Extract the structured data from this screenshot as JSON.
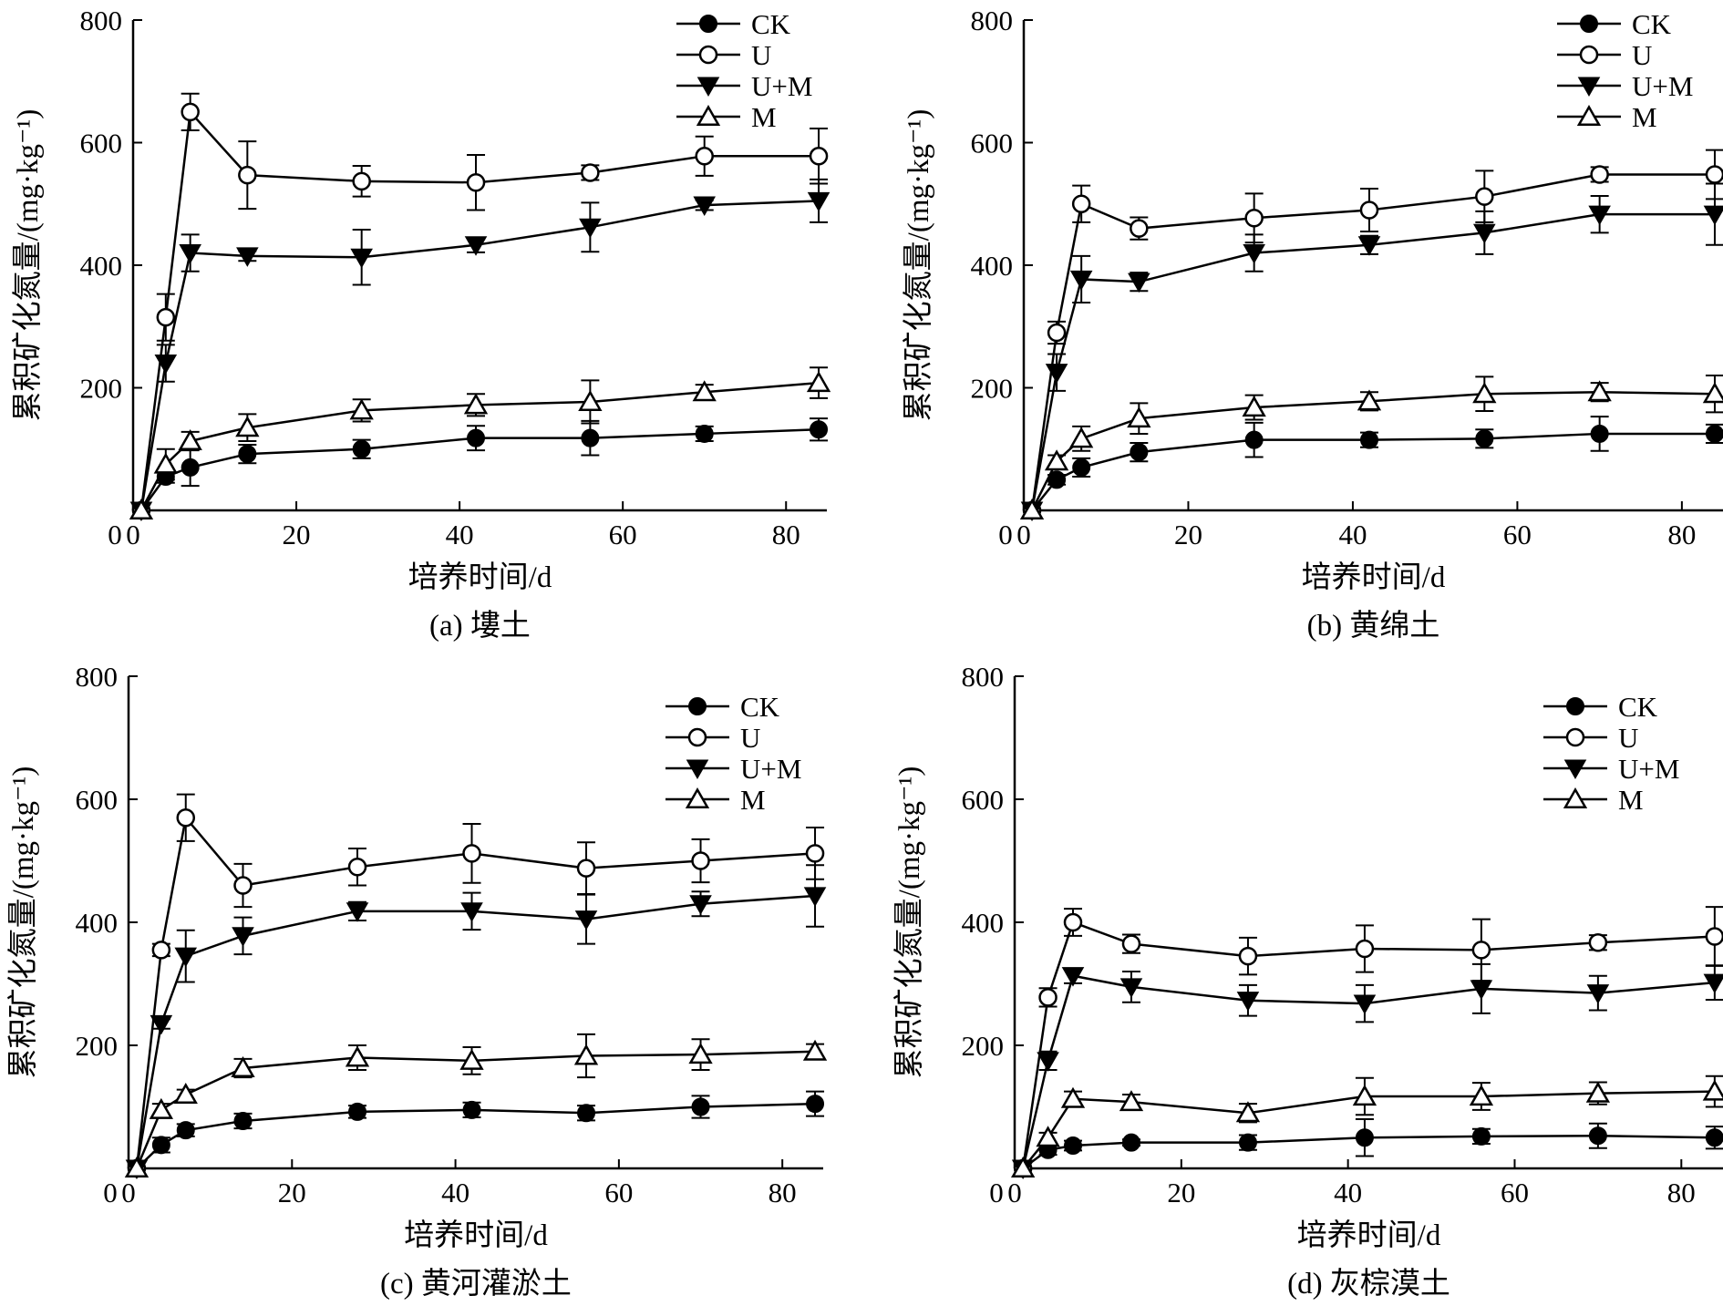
{
  "chart_data": [
    {
      "type": "line",
      "caption": "(a) 塿土",
      "xlabel": "培养时间/d",
      "ylabel": "累积矿化氮量/(mg·kg⁻¹)",
      "xlim": [
        0,
        85
      ],
      "ylim": [
        0,
        800
      ],
      "xticks": [
        0,
        20,
        40,
        60,
        80
      ],
      "yticks": [
        200,
        400,
        600,
        800
      ],
      "y_origin_label": "0",
      "x": [
        1,
        4,
        7,
        14,
        28,
        42,
        56,
        70,
        84
      ],
      "legend_position": "top-right",
      "series": [
        {
          "name": "CK",
          "marker": "filled-circle",
          "values": [
            0,
            55,
            70,
            92,
            100,
            118,
            118,
            125,
            132
          ],
          "errors": [
            0,
            10,
            30,
            15,
            15,
            20,
            28,
            12,
            18
          ]
        },
        {
          "name": "U",
          "marker": "open-circle",
          "values": [
            0,
            315,
            650,
            547,
            537,
            535,
            551,
            578,
            578
          ],
          "errors": [
            0,
            38,
            30,
            55,
            25,
            45,
            12,
            32,
            45
          ]
        },
        {
          "name": "U+M",
          "marker": "filled-triangle-down",
          "values": [
            0,
            240,
            420,
            415,
            413,
            433,
            462,
            498,
            505
          ],
          "errors": [
            0,
            30,
            30,
            8,
            45,
            12,
            40,
            8,
            35
          ]
        },
        {
          "name": "M",
          "marker": "open-triangle-up",
          "values": [
            0,
            75,
            113,
            135,
            163,
            172,
            177,
            193,
            208
          ],
          "errors": [
            0,
            25,
            15,
            22,
            18,
            18,
            35,
            12,
            25
          ]
        }
      ]
    },
    {
      "type": "line",
      "caption": "(b) 黄绵土",
      "xlabel": "培养时间/d",
      "ylabel": "累积矿化氮量/(mg·kg⁻¹)",
      "xlim": [
        0,
        85
      ],
      "ylim": [
        0,
        800
      ],
      "xticks": [
        0,
        20,
        40,
        60,
        80
      ],
      "yticks": [
        200,
        400,
        600,
        800
      ],
      "y_origin_label": "0",
      "x": [
        1,
        4,
        7,
        14,
        28,
        42,
        56,
        70,
        84
      ],
      "legend_position": "top-right",
      "series": [
        {
          "name": "CK",
          "marker": "filled-circle",
          "values": [
            0,
            50,
            70,
            95,
            115,
            115,
            117,
            125,
            125
          ],
          "errors": [
            0,
            8,
            15,
            15,
            28,
            12,
            15,
            28,
            15
          ]
        },
        {
          "name": "U",
          "marker": "open-circle",
          "values": [
            0,
            290,
            500,
            460,
            477,
            490,
            512,
            548,
            548
          ],
          "errors": [
            0,
            18,
            30,
            18,
            40,
            35,
            42,
            12,
            40
          ]
        },
        {
          "name": "U+M",
          "marker": "filled-triangle-down",
          "values": [
            0,
            225,
            377,
            373,
            420,
            433,
            453,
            483,
            483
          ],
          "errors": [
            0,
            30,
            38,
            15,
            30,
            15,
            35,
            30,
            50
          ]
        },
        {
          "name": "M",
          "marker": "open-triangle-up",
          "values": [
            0,
            80,
            117,
            150,
            168,
            178,
            190,
            193,
            190
          ],
          "errors": [
            0,
            10,
            20,
            25,
            20,
            15,
            28,
            15,
            30
          ]
        }
      ]
    },
    {
      "type": "line",
      "caption": "(c) 黄河灌淤土",
      "xlabel": "培养时间/d",
      "ylabel": "累积矿化氮量/(mg·kg⁻¹)",
      "xlim": [
        0,
        85
      ],
      "ylim": [
        0,
        800
      ],
      "xticks": [
        0,
        20,
        40,
        60,
        80
      ],
      "yticks": [
        200,
        400,
        600,
        800
      ],
      "y_origin_label": "0",
      "x": [
        1,
        4,
        7,
        14,
        28,
        42,
        56,
        70,
        84
      ],
      "legend_position": "top-right",
      "series": [
        {
          "name": "CK",
          "marker": "filled-circle",
          "values": [
            0,
            38,
            62,
            77,
            92,
            95,
            90,
            100,
            105
          ],
          "errors": [
            0,
            12,
            10,
            12,
            10,
            12,
            12,
            18,
            20
          ]
        },
        {
          "name": "U",
          "marker": "open-circle",
          "values": [
            0,
            355,
            570,
            460,
            490,
            512,
            488,
            500,
            512
          ],
          "errors": [
            0,
            10,
            38,
            35,
            30,
            48,
            42,
            35,
            42
          ]
        },
        {
          "name": "U+M",
          "marker": "filled-triangle-down",
          "values": [
            0,
            235,
            345,
            378,
            418,
            418,
            405,
            430,
            443
          ],
          "errors": [
            0,
            8,
            42,
            30,
            15,
            30,
            40,
            20,
            50
          ]
        },
        {
          "name": "M",
          "marker": "open-triangle-up",
          "values": [
            0,
            95,
            120,
            163,
            180,
            175,
            183,
            185,
            190
          ],
          "errors": [
            0,
            10,
            8,
            15,
            20,
            22,
            35,
            25,
            12
          ]
        }
      ]
    },
    {
      "type": "line",
      "caption": "(d) 灰棕漠土",
      "xlabel": "培养时间/d",
      "ylabel": "累积矿化氮量/(mg·kg⁻¹)",
      "xlim": [
        0,
        85
      ],
      "ylim": [
        0,
        800
      ],
      "xticks": [
        0,
        20,
        40,
        60,
        80
      ],
      "yticks": [
        200,
        400,
        600,
        800
      ],
      "y_origin_label": "0",
      "x": [
        1,
        4,
        7,
        14,
        28,
        42,
        56,
        70,
        84
      ],
      "legend_position": "top-right",
      "series": [
        {
          "name": "CK",
          "marker": "filled-circle",
          "values": [
            0,
            30,
            37,
            42,
            42,
            50,
            52,
            53,
            50
          ],
          "errors": [
            0,
            8,
            8,
            5,
            12,
            30,
            12,
            20,
            18
          ]
        },
        {
          "name": "U",
          "marker": "open-circle",
          "values": [
            0,
            278,
            400,
            365,
            345,
            357,
            355,
            367,
            377
          ],
          "errors": [
            0,
            15,
            22,
            15,
            30,
            38,
            50,
            12,
            48
          ]
        },
        {
          "name": "U+M",
          "marker": "filled-triangle-down",
          "values": [
            0,
            175,
            313,
            295,
            273,
            268,
            292,
            285,
            302
          ],
          "errors": [
            0,
            15,
            12,
            25,
            25,
            30,
            40,
            28,
            28
          ]
        },
        {
          "name": "M",
          "marker": "open-triangle-up",
          "values": [
            0,
            50,
            113,
            108,
            90,
            117,
            117,
            122,
            125
          ],
          "errors": [
            0,
            8,
            12,
            12,
            15,
            30,
            22,
            18,
            25
          ]
        }
      ]
    }
  ]
}
